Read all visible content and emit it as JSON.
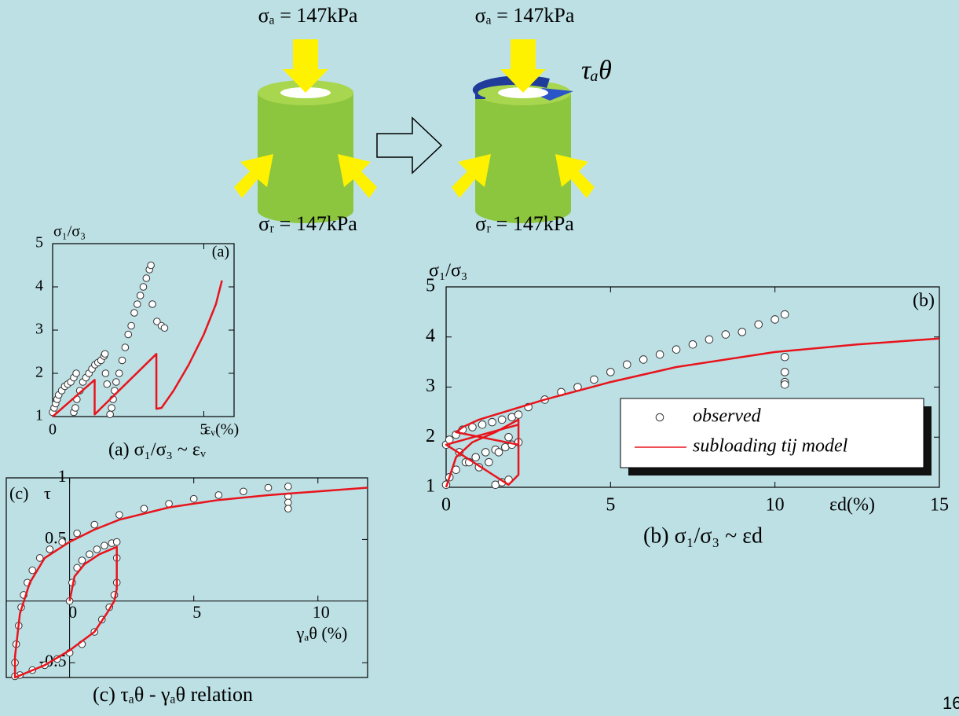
{
  "diagram": {
    "sigma_a_left": "σₐ = 147kPa",
    "sigma_a_right": "σₐ = 147kPa",
    "sigma_r_left": "σᵣ = 147kPa",
    "sigma_r_right": "σᵣ = 147kPa",
    "tau": "τₐθ"
  },
  "page_number": "16",
  "chart_data": [
    {
      "type": "scatter",
      "panel_label": "(a)",
      "y_label": "σ₁/σ₃",
      "x_label": "εᵥ(%)",
      "caption": "(a) σ₁/σ₃ ~ εᵥ",
      "xlim": [
        0,
        6
      ],
      "ylim": [
        1,
        5
      ],
      "xticks": [
        0,
        5
      ],
      "yticks": [
        1,
        2,
        3,
        4,
        5
      ],
      "axes_at_zero": false,
      "series": [
        {
          "name": "observed",
          "mode": "markers",
          "color": "#ffffff",
          "x": [
            0,
            0.05,
            0.1,
            0.15,
            0.2,
            0.3,
            0.4,
            0.5,
            0.6,
            0.7,
            0.78,
            0.7,
            0.75,
            0.8,
            0.9,
            1.0,
            1.1,
            1.2,
            1.3,
            1.4,
            1.5,
            1.6,
            1.7,
            1.73,
            1.75,
            1.8,
            1.9,
            1.95,
            2.0,
            2.05,
            2.1,
            2.2,
            2.3,
            2.4,
            2.5,
            2.6,
            2.7,
            2.8,
            2.9,
            3.0,
            3.1,
            3.2,
            3.25,
            3.3,
            3.45,
            3.6,
            3.7
          ],
          "values": [
            1.1,
            1.2,
            1.3,
            1.4,
            1.5,
            1.6,
            1.7,
            1.75,
            1.8,
            1.9,
            2.0,
            1.1,
            1.2,
            1.4,
            1.6,
            1.8,
            1.9,
            2.0,
            2.1,
            2.2,
            2.25,
            2.3,
            2.4,
            2.45,
            2.0,
            1.75,
            1.05,
            1.2,
            1.4,
            1.6,
            1.8,
            2.0,
            2.3,
            2.6,
            2.9,
            3.1,
            3.4,
            3.6,
            3.8,
            4.0,
            4.2,
            4.4,
            4.5,
            3.6,
            3.2,
            3.1,
            3.05
          ]
        },
        {
          "name": "subloading tij model",
          "mode": "line",
          "color": "#e8141c",
          "x": [
            0,
            1.39,
            1.39,
            3.43,
            3.43,
            3.6,
            4.0,
            4.5,
            5.0,
            5.4,
            5.6
          ],
          "values": [
            1,
            1.85,
            1.05,
            2.45,
            1.18,
            1.2,
            1.6,
            2.2,
            2.9,
            3.6,
            4.15
          ]
        }
      ]
    },
    {
      "type": "scatter",
      "panel_label": "(b)",
      "y_label": "σ₁/σ₃",
      "x_label": "εd(%)",
      "caption": "(b) σ₁/σ₃ ~ εd",
      "xlim": [
        0,
        15
      ],
      "ylim": [
        1,
        5
      ],
      "xticks": [
        0,
        5,
        10,
        15
      ],
      "yticks": [
        1,
        2,
        3,
        4,
        5
      ],
      "axes_at_zero": false,
      "legend": "right",
      "series": [
        {
          "name": "observed",
          "mode": "markers",
          "color": "#ffffff",
          "x": [
            0,
            0.1,
            0.3,
            0.5,
            0.8,
            1.1,
            1.4,
            1.7,
            2.0,
            2.2,
            0,
            0.1,
            0.3,
            0.6,
            0.9,
            1.2,
            1.5,
            1.8,
            2.0,
            2.2,
            1.9,
            1.6,
            1.3,
            1.0,
            0.7,
            0.4,
            1.5,
            1.7,
            1.9,
            2.5,
            3,
            3.5,
            4,
            4.5,
            5,
            5.5,
            6,
            6.5,
            7,
            7.5,
            8,
            8.5,
            9,
            9.5,
            10,
            10.3,
            10.3,
            10.3,
            10.3,
            10.3
          ],
          "values": [
            1.85,
            1.95,
            2.05,
            2.15,
            2.2,
            2.25,
            2.3,
            2.35,
            2.4,
            2.45,
            1.05,
            1.2,
            1.35,
            1.5,
            1.6,
            1.7,
            1.75,
            1.8,
            1.85,
            1.9,
            2.0,
            1.7,
            1.5,
            1.4,
            1.5,
            1.7,
            1.05,
            1.1,
            1.15,
            2.6,
            2.75,
            2.9,
            3.0,
            3.15,
            3.3,
            3.45,
            3.55,
            3.65,
            3.75,
            3.85,
            3.95,
            4.05,
            4.1,
            4.25,
            4.35,
            4.45,
            3.6,
            3.3,
            3.1,
            3.05
          ]
        },
        {
          "name": "subloading tij model",
          "mode": "line",
          "color": "#e8141c",
          "x": [
            0,
            0.3,
            0.8,
            1.5,
            2.2,
            2.2,
            1.9,
            0,
            2.2,
            2.2,
            0.3,
            0.5,
            1,
            2,
            3,
            5,
            7,
            10,
            12.5,
            15
          ],
          "values": [
            1,
            1.6,
            1.9,
            2.1,
            2.35,
            1.25,
            1.05,
            1.85,
            2.25,
            1.85,
            2.1,
            2.2,
            2.35,
            2.55,
            2.75,
            3.1,
            3.4,
            3.7,
            3.85,
            3.97
          ]
        }
      ]
    },
    {
      "type": "scatter",
      "panel_label": "(c)",
      "y_label": "τ",
      "x_label": "γₐθ (%)",
      "caption": "(c) τₐθ - γₐθ relation",
      "xlim": [
        -2.55,
        12
      ],
      "ylim": [
        -0.62,
        1.0
      ],
      "xticks": [
        0,
        5,
        10
      ],
      "yticks": [
        -0.5,
        0.5,
        1
      ],
      "axes_at_zero": true,
      "series": [
        {
          "name": "observed",
          "mode": "markers",
          "color": "#ffffff",
          "x": [
            0,
            0.1,
            0.3,
            0.5,
            0.8,
            1.1,
            1.4,
            1.7,
            1.9,
            1.9,
            1.9,
            1.8,
            1.6,
            1.3,
            1.0,
            0.5,
            0,
            -0.5,
            -1,
            -1.5,
            -2,
            -2.2,
            -2.2,
            -2.15,
            -2.05,
            -1.95,
            -1.85,
            -1.7,
            -1.5,
            -1.2,
            -0.8,
            -0.3,
            0.3,
            1,
            2,
            3,
            4,
            5,
            6,
            7,
            8,
            8.8,
            8.8,
            8.8,
            8.8
          ],
          "values": [
            0,
            0.15,
            0.27,
            0.33,
            0.38,
            0.42,
            0.45,
            0.47,
            0.48,
            0.35,
            0.15,
            0.05,
            -0.05,
            -0.15,
            -0.25,
            -0.35,
            -0.42,
            -0.47,
            -0.52,
            -0.56,
            -0.6,
            -0.61,
            -0.5,
            -0.35,
            -0.2,
            -0.05,
            0.05,
            0.15,
            0.25,
            0.35,
            0.42,
            0.48,
            0.55,
            0.62,
            0.7,
            0.75,
            0.79,
            0.83,
            0.86,
            0.89,
            0.92,
            0.93,
            0.85,
            0.8,
            0.75
          ]
        },
        {
          "name": "subloading tij model",
          "mode": "line",
          "color": "#e8141c",
          "x": [
            0,
            0.2,
            0.6,
            1.2,
            1.9,
            1.9,
            1.8,
            1.5,
            1,
            0,
            -1,
            -2.2,
            -2.2,
            -2.0,
            -1.6,
            -1,
            0,
            1,
            2,
            4,
            6,
            8,
            10,
            12
          ],
          "values": [
            0,
            0.2,
            0.3,
            0.38,
            0.44,
            0.1,
            0,
            -0.1,
            -0.25,
            -0.4,
            -0.52,
            -0.62,
            -0.45,
            -0.1,
            0.15,
            0.35,
            0.48,
            0.58,
            0.66,
            0.76,
            0.82,
            0.86,
            0.89,
            0.92
          ]
        }
      ]
    }
  ]
}
